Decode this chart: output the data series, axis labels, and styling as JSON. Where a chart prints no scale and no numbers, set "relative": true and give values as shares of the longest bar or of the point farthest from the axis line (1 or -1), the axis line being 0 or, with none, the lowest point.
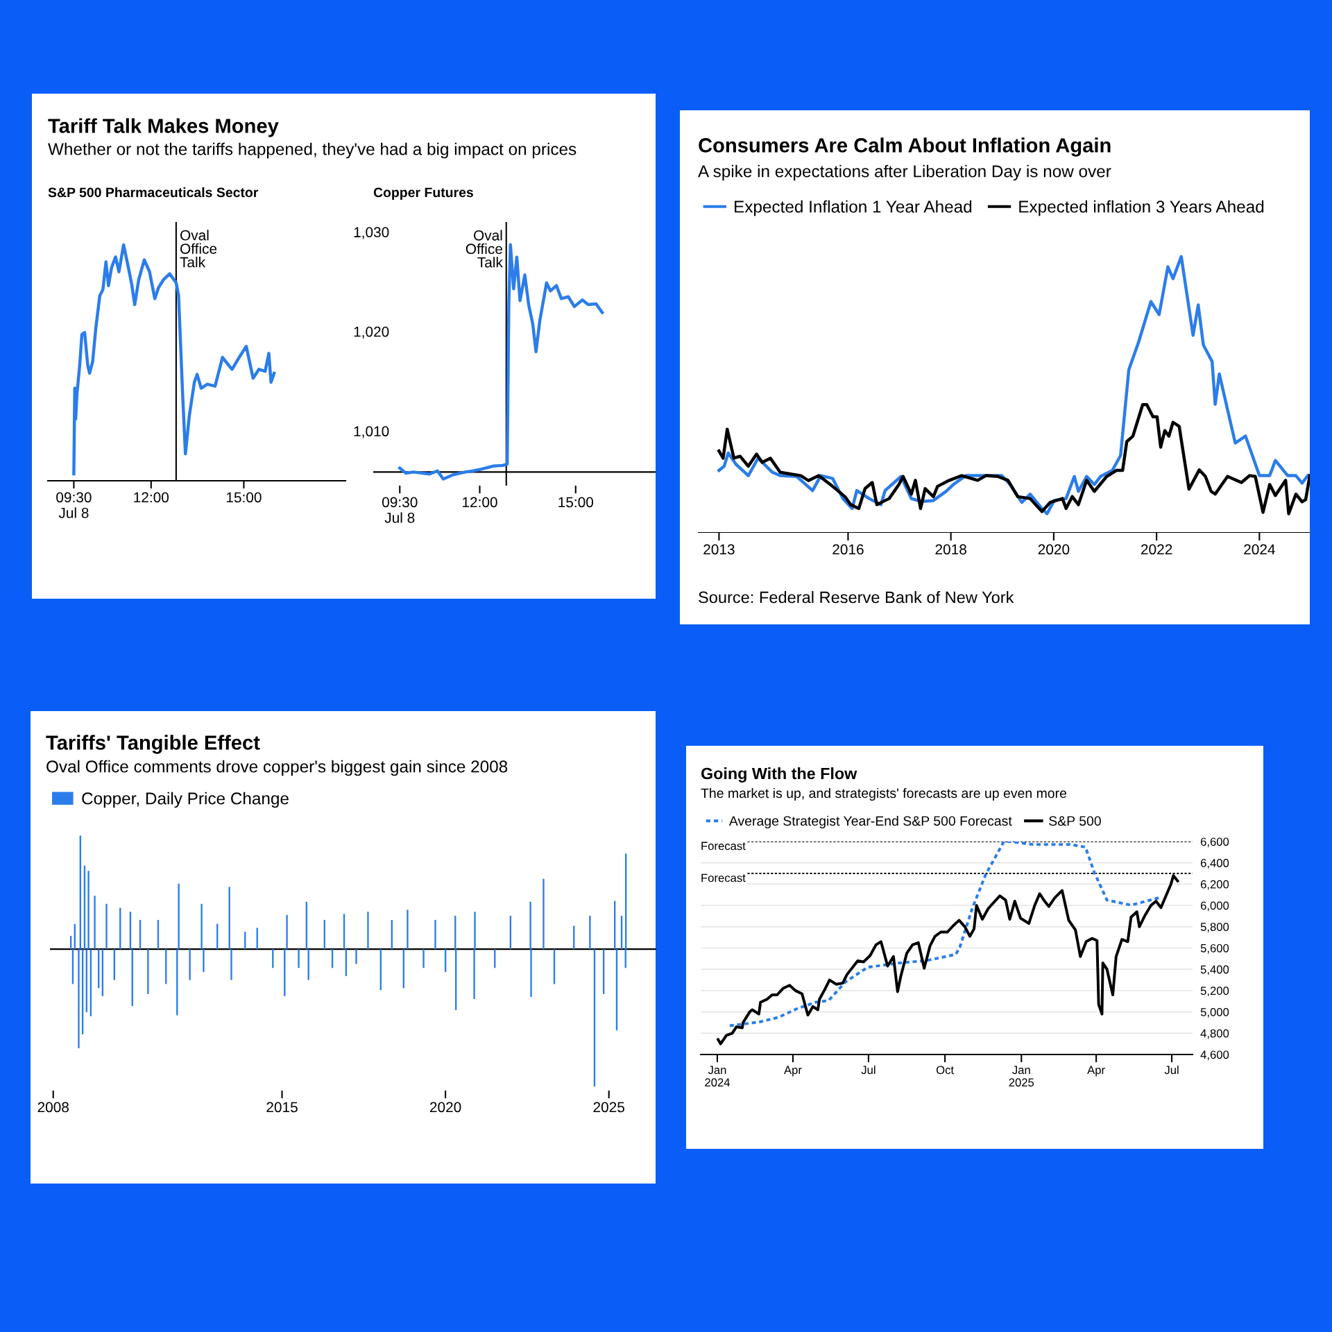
{
  "chart_data": [
    {
      "type": "other",
      "title": "Tariff Talk Makes Money",
      "subtitle": "Whether or not the tariffs happened, they've had a big impact on prices"
    },
    {
      "type": "line",
      "title": "S&P 500 Pharmaceuticals Sector",
      "xlim": [
        8.66,
        18.29
      ],
      "xticks": [
        {
          "value": 9.5,
          "label": "09:30\nJul 8"
        },
        {
          "value": 12,
          "label": "12:00"
        },
        {
          "value": 15,
          "label": "15:00"
        }
      ],
      "ylim": [
        1005,
        1031
      ],
      "yticks": [
        {
          "value": 1010,
          "label": "1,010"
        },
        {
          "value": 1020,
          "label": "1,020"
        },
        {
          "value": 1030,
          "label": "1,030"
        }
      ],
      "ref_lines": [
        {
          "axis": "x",
          "value": 12.81,
          "label": "Oval\nOffice\nTalk",
          "color": "#000000"
        }
      ],
      "series": [
        {
          "color": "#2b7de9",
          "x": [
            9.5,
            9.53,
            9.56,
            9.6,
            9.69,
            9.76,
            9.85,
            9.95,
            10.01,
            10.11,
            10.21,
            10.34,
            10.44,
            10.54,
            10.62,
            10.72,
            10.85,
            10.96,
            11.11,
            11.24,
            11.37,
            11.47,
            11.6,
            11.78,
            11.95,
            12.12,
            12.24,
            12.4,
            12.6,
            12.81,
            12.89,
            13.02,
            13.11,
            13.24,
            13.4,
            13.49,
            13.62,
            13.82,
            14.07,
            14.31,
            14.46,
            14.62,
            14.85,
            15.08,
            15.3,
            15.49,
            15.69,
            15.81,
            15.88,
            15.98
          ],
          "values": [
            1005.7,
            1014.3,
            1011.2,
            1013.7,
            1016.6,
            1019.7,
            1019.9,
            1016.6,
            1015.8,
            1017.0,
            1020.3,
            1023.6,
            1024.2,
            1027.0,
            1024.6,
            1026.4,
            1027.5,
            1026.0,
            1028.7,
            1026.8,
            1024.8,
            1022.7,
            1025.2,
            1027.2,
            1026.0,
            1023.3,
            1024.4,
            1025.2,
            1025.8,
            1024.9,
            1023.6,
            1013.7,
            1007.7,
            1011.6,
            1014.9,
            1015.7,
            1014.3,
            1014.7,
            1014.5,
            1017.4,
            1016.8,
            1016.2,
            1017.4,
            1018.5,
            1015.3,
            1016.2,
            1016.0,
            1017.8,
            1014.9,
            1015.8
          ]
        }
      ]
    },
    {
      "type": "line",
      "title": "Copper Futures",
      "relative": true,
      "xlim": [
        8.67,
        17.5
      ],
      "xticks": [
        {
          "value": 9.5,
          "label": "09:30\nJul 8"
        },
        {
          "value": 12,
          "label": "12:00"
        },
        {
          "value": 15,
          "label": "15:00"
        }
      ],
      "ref_lines": [
        {
          "axis": "x",
          "value": 12.83,
          "label": "Oval\nOffice\nTalk",
          "color": "#000000"
        }
      ],
      "series": [
        {
          "color": "#2b7de9",
          "x": [
            9.5,
            9.69,
            9.93,
            10.43,
            10.68,
            10.86,
            11.17,
            11.55,
            11.8,
            12.04,
            12.42,
            12.73,
            12.86,
            12.91,
            12.96,
            13.06,
            13.16,
            13.26,
            13.41,
            13.53,
            13.66,
            13.76,
            13.88,
            14.09,
            14.21,
            14.4,
            14.55,
            14.77,
            14.96,
            15.21,
            15.39,
            15.64,
            15.83
          ],
          "values": [
            0.017,
            -0.005,
            0.0,
            -0.009,
            0.005,
            -0.031,
            -0.012,
            0.0,
            0.005,
            0.012,
            0.026,
            0.029,
            0.035,
            0.737,
            1.0,
            0.806,
            0.945,
            0.754,
            0.867,
            0.737,
            0.65,
            0.529,
            0.667,
            0.832,
            0.797,
            0.82,
            0.763,
            0.771,
            0.728,
            0.757,
            0.737,
            0.74,
            0.702
          ]
        }
      ]
    },
    {
      "type": "line",
      "title": "Consumers Are Calm About Inflation Again",
      "subtitle": "A spike in expectations after Liberation Day is now over",
      "relative": true,
      "legend": "top",
      "xlim": [
        2013.08,
        2024.98
      ],
      "xticks": [
        {
          "value": 2013.49,
          "label": "2013"
        },
        2016,
        2018,
        2020,
        2022,
        2024
      ],
      "annotations": [
        "Source: Federal Reserve Bank of New York"
      ],
      "series": [
        {
          "name": "Expected Inflation 1 Year Ahead",
          "color": "#2b7de9",
          "x": [
            2013.49,
            2013.59,
            2013.67,
            2013.82,
            2014.06,
            2014.25,
            2014.53,
            2014.68,
            2015.0,
            2015.31,
            2015.47,
            2015.7,
            2015.9,
            2016.08,
            2016.17,
            2016.41,
            2016.64,
            2016.72,
            2017.03,
            2017.23,
            2017.43,
            2017.66,
            2017.9,
            2018.05,
            2018.29,
            2018.68,
            2018.99,
            2019.15,
            2019.38,
            2019.54,
            2019.77,
            2019.87,
            2020.01,
            2020.24,
            2020.4,
            2020.48,
            2020.64,
            2020.79,
            2020.91,
            2021.14,
            2021.3,
            2021.46,
            2021.65,
            2021.89,
            2022.05,
            2022.22,
            2022.32,
            2022.48,
            2022.71,
            2022.81,
            2022.91,
            2023.08,
            2023.14,
            2023.22,
            2023.53,
            2023.73,
            2024.0,
            2024.2,
            2024.31,
            2024.55,
            2024.71,
            2024.83,
            2024.94
          ],
          "values": [
            0.226,
            0.241,
            0.289,
            0.248,
            0.207,
            0.27,
            0.219,
            0.207,
            0.204,
            0.153,
            0.207,
            0.197,
            0.124,
            0.088,
            0.153,
            0.124,
            0.102,
            0.153,
            0.204,
            0.124,
            0.113,
            0.117,
            0.149,
            0.175,
            0.207,
            0.207,
            0.207,
            0.175,
            0.11,
            0.14,
            0.088,
            0.069,
            0.117,
            0.124,
            0.204,
            0.15,
            0.204,
            0.175,
            0.204,
            0.226,
            0.28,
            0.59,
            0.69,
            0.837,
            0.79,
            0.963,
            0.92,
            1.0,
            0.715,
            0.825,
            0.68,
            0.62,
            0.465,
            0.575,
            0.325,
            0.35,
            0.207,
            0.207,
            0.262,
            0.207,
            0.207,
            0.18,
            0.207
          ]
        },
        {
          "name": "Expected inflation 3 Years Ahead",
          "color": "#000000",
          "x": [
            2013.49,
            2013.57,
            2013.65,
            2013.78,
            2013.9,
            2014.06,
            2014.22,
            2014.33,
            2014.49,
            2014.68,
            2015.08,
            2015.23,
            2015.43,
            2015.7,
            2015.94,
            2016.05,
            2016.21,
            2016.33,
            2016.47,
            2016.56,
            2016.8,
            2016.99,
            2017.07,
            2017.23,
            2017.31,
            2017.41,
            2017.5,
            2017.66,
            2017.74,
            2017.97,
            2018.21,
            2018.52,
            2018.68,
            2018.91,
            2019.11,
            2019.3,
            2019.54,
            2019.77,
            2019.93,
            2020.17,
            2020.24,
            2020.36,
            2020.48,
            2020.64,
            2020.79,
            2021.03,
            2021.22,
            2021.34,
            2021.42,
            2021.54,
            2021.73,
            2021.81,
            2021.93,
            2022.01,
            2022.08,
            2022.16,
            2022.24,
            2022.32,
            2022.44,
            2022.63,
            2022.83,
            2022.95,
            2023.06,
            2023.14,
            2023.38,
            2023.65,
            2023.81,
            2023.92,
            2024.07,
            2024.2,
            2024.31,
            2024.51,
            2024.57,
            2024.71,
            2024.83,
            2024.9,
            2024.98
          ],
          "values": [
            0.296,
            0.27,
            0.375,
            0.27,
            0.277,
            0.241,
            0.285,
            0.255,
            0.27,
            0.219,
            0.207,
            0.189,
            0.207,
            0.168,
            0.131,
            0.102,
            0.088,
            0.16,
            0.182,
            0.102,
            0.124,
            0.175,
            0.204,
            0.14,
            0.19,
            0.088,
            0.16,
            0.131,
            0.168,
            0.19,
            0.207,
            0.19,
            0.207,
            0.204,
            0.19,
            0.131,
            0.124,
            0.077,
            0.11,
            0.124,
            0.088,
            0.131,
            0.102,
            0.19,
            0.15,
            0.204,
            0.226,
            0.226,
            0.33,
            0.35,
            0.464,
            0.464,
            0.42,
            0.42,
            0.31,
            0.37,
            0.35,
            0.4,
            0.385,
            0.158,
            0.228,
            0.204,
            0.15,
            0.14,
            0.204,
            0.182,
            0.207,
            0.204,
            0.074,
            0.175,
            0.135,
            0.19,
            0.069,
            0.14,
            0.112,
            0.12,
            0.207
          ]
        }
      ]
    },
    {
      "type": "bar",
      "title": "Tariffs' Tangible Effect",
      "subtitle": "Oval Office comments drove copper's biggest gain since 2008",
      "relative": true,
      "legend": "top",
      "xlim": [
        2007.9,
        2026.45
      ],
      "xticks": [
        2008,
        2015,
        2020,
        2025
      ],
      "series": [
        {
          "name": "Copper, Daily Price Change",
          "color": "#2b7de9",
          "x": [
            2008.54,
            2008.6,
            2008.66,
            2008.78,
            2008.83,
            2008.9,
            2008.96,
            2009.02,
            2009.08,
            2009.15,
            2009.27,
            2009.39,
            2009.51,
            2009.63,
            2009.87,
            2010.05,
            2010.36,
            2010.42,
            2010.66,
            2010.9,
            2011.21,
            2011.45,
            2011.79,
            2011.84,
            2012.18,
            2012.54,
            2012.6,
            2013.02,
            2013.39,
            2013.45,
            2013.87,
            2014.24,
            2014.72,
            2015.08,
            2015.15,
            2015.51,
            2015.75,
            2015.81,
            2016.3,
            2016.54,
            2016.9,
            2016.96,
            2017.27,
            2017.63,
            2018.02,
            2018.36,
            2018.72,
            2018.84,
            2019.33,
            2019.69,
            2020.0,
            2020.3,
            2020.32,
            2020.88,
            2020.9,
            2021.51,
            2021.99,
            2022.6,
            2022.62,
            2023.0,
            2023.33,
            2023.93,
            2024.42,
            2024.56,
            2024.84,
            2025.18,
            2025.24,
            2025.39,
            2025.51,
            2025.52
          ],
          "values": [
            0.096,
            -0.254,
            0.184,
            -0.722,
            0.827,
            -0.62,
            0.608,
            -0.459,
            0.57,
            -0.488,
            0.389,
            -0.284,
            -0.342,
            0.33,
            -0.225,
            0.301,
            0.272,
            -0.415,
            0.213,
            -0.327,
            0.213,
            -0.254,
            -0.482,
            0.477,
            -0.225,
            0.33,
            -0.167,
            0.184,
            0.453,
            -0.225,
            0.126,
            0.155,
            -0.137,
            -0.342,
            0.249,
            -0.137,
            0.345,
            -0.225,
            0.213,
            -0.137,
            0.257,
            -0.196,
            -0.108,
            0.272,
            -0.298,
            0.213,
            -0.284,
            0.287,
            -0.137,
            0.213,
            -0.167,
            0.243,
            -0.444,
            -0.363,
            0.272,
            -0.137,
            0.243,
            0.345,
            -0.348,
            0.512,
            -0.254,
            0.17,
            0.243,
            -1.0,
            -0.327,
            0.351,
            -0.591,
            0.243,
            -0.137,
            0.696
          ]
        }
      ]
    },
    {
      "type": "line",
      "title": "Going With the Flow",
      "subtitle": "The market is up, and strategists' forecasts are up even more",
      "legend": "top",
      "grid": "y",
      "xlim": [
        "2023-12-12",
        "2025-07-26"
      ],
      "xticks": [
        {
          "value": "2024-01-01",
          "label": "Jan\n2024"
        },
        {
          "value": "2024-04-01",
          "label": "Apr"
        },
        {
          "value": "2024-07-01",
          "label": "Jul"
        },
        {
          "value": "2024-10-01",
          "label": "Oct"
        },
        {
          "value": "2025-01-01",
          "label": "Jan\n2025"
        },
        {
          "value": "2025-04-01",
          "label": "Apr"
        },
        {
          "value": "2025-07-01",
          "label": "Jul"
        }
      ],
      "ylim": [
        4600,
        6600
      ],
      "yticks": [
        {
          "value": 4600,
          "label": "4,600"
        },
        {
          "value": 4800,
          "label": "4,800"
        },
        {
          "value": 5000,
          "label": "5,000"
        },
        {
          "value": 5200,
          "label": "5,200"
        },
        {
          "value": 5400,
          "label": "5,400"
        },
        {
          "value": 5600,
          "label": "5,600"
        },
        {
          "value": 5800,
          "label": "5,800"
        },
        {
          "value": 6000,
          "label": "6,000"
        },
        {
          "value": 6200,
          "label": "6,200"
        },
        {
          "value": 6400,
          "label": "6,400"
        },
        {
          "value": 6600,
          "label": "6,600"
        }
      ],
      "ref_lines": [
        {
          "axis": "y",
          "value": 6600,
          "label": "Forecast",
          "color": "#000000",
          "line_style": "dashed"
        },
        {
          "axis": "y",
          "value": 6300,
          "label": "Forecast",
          "color": "#000000",
          "line_style": "dashed"
        }
      ],
      "series": [
        {
          "name": "Average Strategist Year-End S&P 500 Forecast",
          "color": "#2b7de9",
          "line_style": "dashed",
          "x": [
            "2024-01-16",
            "2024-02-21",
            "2024-03-15",
            "2024-04-06",
            "2024-04-28",
            "2024-05-14",
            "2024-06-03",
            "2024-06-30",
            "2024-07-17",
            "2024-08-08",
            "2024-09-09",
            "2024-10-14",
            "2024-10-19",
            "2024-11-03",
            "2024-11-19",
            "2024-12-11",
            "2024-12-18",
            "2025-01-15",
            "2025-02-02",
            "2025-03-01",
            "2025-03-19",
            "2025-03-30",
            "2025-04-14",
            "2025-05-13",
            "2025-06-16"
          ],
          "values": [
            4870,
            4906,
            4950,
            5030,
            5090,
            5107,
            5280,
            5420,
            5437,
            5460,
            5482,
            5540,
            5610,
            5975,
            6290,
            6600,
            6600,
            6572,
            6572,
            6572,
            6548,
            6305,
            6050,
            6003,
            6072
          ]
        },
        {
          "name": "S&P 500",
          "color": "#000000",
          "x": [
            "2024-01-02",
            "2024-01-05",
            "2024-01-12",
            "2024-01-19",
            "2024-01-24",
            "2024-01-31",
            "2024-02-01",
            "2024-02-09",
            "2024-02-12",
            "2024-02-20",
            "2024-02-22",
            "2024-03-01",
            "2024-03-07",
            "2024-03-13",
            "2024-03-20",
            "2024-03-28",
            "2024-04-04",
            "2024-04-12",
            "2024-04-19",
            "2024-04-25",
            "2024-05-01",
            "2024-05-03",
            "2024-05-10",
            "2024-05-15",
            "2024-05-23",
            "2024-05-31",
            "2024-06-05",
            "2024-06-12",
            "2024-06-18",
            "2024-06-25",
            "2024-07-03",
            "2024-07-10",
            "2024-07-16",
            "2024-07-24",
            "2024-07-31",
            "2024-08-05",
            "2024-08-09",
            "2024-08-16",
            "2024-08-23",
            "2024-08-30",
            "2024-09-06",
            "2024-09-13",
            "2024-09-19",
            "2024-09-26",
            "2024-10-04",
            "2024-10-11",
            "2024-10-18",
            "2024-10-25",
            "2024-10-31",
            "2024-11-05",
            "2024-11-08",
            "2024-11-15",
            "2024-11-22",
            "2024-11-29",
            "2024-12-06",
            "2024-12-13",
            "2024-12-18",
            "2024-12-24",
            "2024-12-31",
            "2025-01-10",
            "2025-01-17",
            "2025-01-23",
            "2025-01-28",
            "2025-02-03",
            "2025-02-10",
            "2025-02-19",
            "2025-02-27",
            "2025-03-07",
            "2025-03-13",
            "2025-03-20",
            "2025-03-27",
            "2025-04-02",
            "2025-04-04",
            "2025-04-08",
            "2025-04-09",
            "2025-04-14",
            "2025-04-21",
            "2025-04-25",
            "2025-05-02",
            "2025-05-09",
            "2025-05-13",
            "2025-05-20",
            "2025-05-23",
            "2025-05-30",
            "2025-06-06",
            "2025-06-12",
            "2025-06-18",
            "2025-06-24",
            "2025-06-30",
            "2025-07-03",
            "2025-07-08"
          ],
          "values": [
            4740,
            4700,
            4780,
            4800,
            4860,
            4850,
            4900,
            5000,
            5020,
            4980,
            5090,
            5120,
            5160,
            5160,
            5220,
            5250,
            5200,
            5170,
            4970,
            5050,
            5020,
            5120,
            5220,
            5300,
            5260,
            5270,
            5350,
            5420,
            5480,
            5470,
            5530,
            5630,
            5660,
            5430,
            5520,
            5190,
            5340,
            5550,
            5630,
            5650,
            5410,
            5620,
            5710,
            5750,
            5750,
            5810,
            5860,
            5800,
            5710,
            5780,
            6000,
            5870,
            5970,
            6030,
            6090,
            6050,
            5870,
            6040,
            5880,
            5830,
            6000,
            6110,
            6050,
            5990,
            6070,
            6140,
            5860,
            5770,
            5520,
            5660,
            5690,
            5670,
            5070,
            4980,
            5460,
            5400,
            5160,
            5520,
            5680,
            5660,
            5890,
            5940,
            5800,
            5910,
            6000,
            6040,
            5980,
            6090,
            6200,
            6280,
            6230
          ]
        }
      ]
    }
  ]
}
